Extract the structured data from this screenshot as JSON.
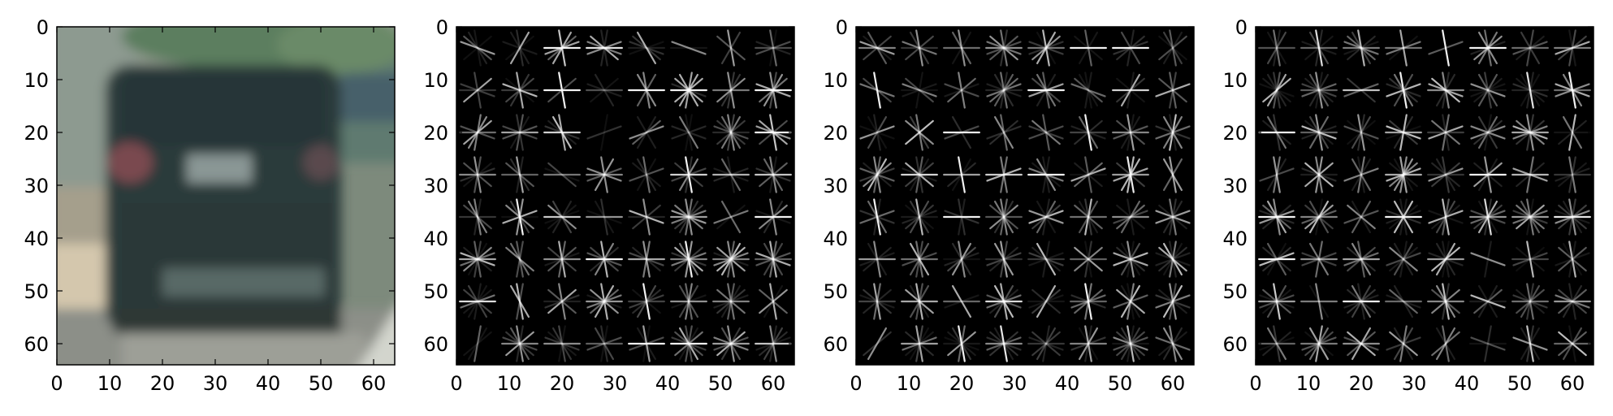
{
  "chart_data": [
    {
      "type": "image",
      "content": "car-rear-photo",
      "x_ticks": [
        0,
        10,
        20,
        30,
        40,
        50,
        60
      ],
      "y_ticks": [
        0,
        10,
        20,
        30,
        40,
        50,
        60
      ],
      "xlim": [
        0,
        64
      ],
      "ylim": [
        64,
        0
      ],
      "grid": false
    },
    {
      "type": "heatmap",
      "content": "hog-visualization-channel-1",
      "cells": 8,
      "x_ticks": [
        0,
        10,
        20,
        30,
        40,
        50,
        60
      ],
      "y_ticks": [
        0,
        10,
        20,
        30,
        40,
        50,
        60
      ],
      "xlim": [
        0,
        64
      ],
      "ylim": [
        64,
        0
      ],
      "grid": false
    },
    {
      "type": "heatmap",
      "content": "hog-visualization-channel-2",
      "cells": 8,
      "x_ticks": [
        0,
        10,
        20,
        30,
        40,
        50,
        60
      ],
      "y_ticks": [
        0,
        10,
        20,
        30,
        40,
        50,
        60
      ],
      "xlim": [
        0,
        64
      ],
      "ylim": [
        64,
        0
      ],
      "grid": false
    },
    {
      "type": "heatmap",
      "content": "hog-visualization-channel-3",
      "cells": 8,
      "x_ticks": [
        0,
        10,
        20,
        30,
        40,
        50,
        60
      ],
      "y_ticks": [
        0,
        10,
        20,
        30,
        40,
        50,
        60
      ],
      "xlim": [
        0,
        64
      ],
      "ylim": [
        64,
        0
      ],
      "grid": false
    }
  ],
  "colors": {
    "background": "#ffffff",
    "hog_background": "#000000",
    "hog_stroke": "#ffffff",
    "axis": "#000000"
  }
}
